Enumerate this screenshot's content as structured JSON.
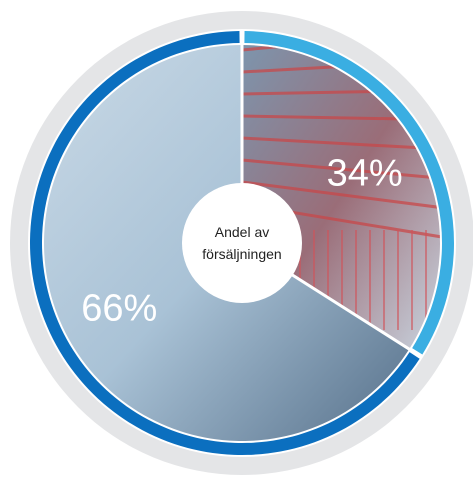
{
  "chart_data": {
    "type": "pie",
    "values": [
      34,
      66
    ],
    "value_labels": [
      "34%",
      "66%"
    ],
    "colors": [
      "#3aaee2",
      "#0b6fbf"
    ],
    "center_label": "Andel av försäljningen"
  }
}
